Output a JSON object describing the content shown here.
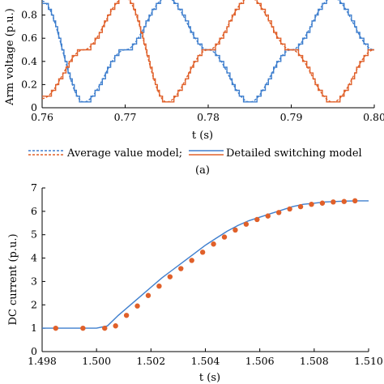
{
  "chart_data": [
    {
      "type": "line",
      "caption": "(a)",
      "xlabel": "t (s)",
      "ylabel": "Arm voltage (p.u.)",
      "xlim": [
        0.76,
        0.8
      ],
      "ylim": [
        0,
        1.0
      ],
      "xticks": [
        "0.76",
        "0.77",
        "0.78",
        "0.79",
        "0.80"
      ],
      "yticks": [
        "0",
        "0.2",
        "0.4",
        "0.6",
        "0.8"
      ],
      "grid": false,
      "legend_position": "bottom",
      "series": [
        {
          "name": "Average value model;",
          "style": "dashed",
          "color": "#3f7fce",
          "x": [
            0.76,
            0.765,
            0.77,
            0.775,
            0.78,
            0.785,
            0.79,
            0.795,
            0.8
          ],
          "y": [
            0.92,
            0.05,
            0.5,
            0.95,
            0.5,
            0.05,
            0.5,
            0.95,
            0.5
          ]
        },
        {
          "name": "Detailed switching model",
          "style": "solid",
          "color": "#3f7fce",
          "x": [
            0.76,
            0.765,
            0.77,
            0.775,
            0.78,
            0.785,
            0.79,
            0.795,
            0.8
          ],
          "y": [
            0.92,
            0.05,
            0.5,
            0.95,
            0.5,
            0.05,
            0.5,
            0.95,
            0.5
          ]
        },
        {
          "name": "",
          "style": "dashed",
          "color": "#e0602a",
          "x": [
            0.76,
            0.765,
            0.77,
            0.775,
            0.78,
            0.785,
            0.79,
            0.795,
            0.8
          ],
          "y": [
            0.08,
            0.5,
            0.95,
            0.05,
            0.5,
            0.95,
            0.5,
            0.05,
            0.5
          ]
        },
        {
          "name": "",
          "style": "solid",
          "color": "#e0602a",
          "x": [
            0.76,
            0.765,
            0.77,
            0.775,
            0.78,
            0.785,
            0.79,
            0.795,
            0.8
          ],
          "y": [
            0.08,
            0.5,
            0.95,
            0.05,
            0.5,
            0.95,
            0.5,
            0.05,
            0.5
          ]
        }
      ]
    },
    {
      "type": "line",
      "xlabel": "t (s)",
      "ylabel": "DC current (p.u.)",
      "xlim": [
        1.498,
        1.51
      ],
      "ylim": [
        0,
        7
      ],
      "xticks": [
        "1.498",
        "1.500",
        "1.502",
        "1.504",
        "1.506",
        "1.508",
        "1.510"
      ],
      "yticks": [
        "0",
        "1",
        "2",
        "3",
        "4",
        "5",
        "6",
        "7"
      ],
      "grid": false,
      "series": [
        {
          "name": "",
          "style": "solid",
          "color": "#3f7fce",
          "x": [
            1.498,
            1.4985,
            1.499,
            1.4995,
            1.5,
            1.5004,
            1.5008,
            1.5012,
            1.5016,
            1.502,
            1.5024,
            1.5028,
            1.5032,
            1.5036,
            1.504,
            1.5044,
            1.5048,
            1.5052,
            1.5056,
            1.506,
            1.5064,
            1.5068,
            1.5072,
            1.5076,
            1.508,
            1.5084,
            1.5088,
            1.5092,
            1.5096,
            1.51
          ],
          "y": [
            1.0,
            1.0,
            1.0,
            1.0,
            1.0,
            1.1,
            1.55,
            1.95,
            2.35,
            2.75,
            3.15,
            3.5,
            3.85,
            4.2,
            4.55,
            4.85,
            5.15,
            5.4,
            5.6,
            5.75,
            5.9,
            6.05,
            6.2,
            6.3,
            6.35,
            6.4,
            6.42,
            6.44,
            6.45,
            6.45
          ]
        },
        {
          "name": "",
          "style": "markers",
          "color": "#e0602a",
          "x": [
            1.4985,
            1.4995,
            1.5003,
            1.5007,
            1.5011,
            1.5015,
            1.5019,
            1.5023,
            1.5027,
            1.5031,
            1.5035,
            1.5039,
            1.5043,
            1.5047,
            1.5051,
            1.5055,
            1.5059,
            1.5063,
            1.5067,
            1.5071,
            1.5075,
            1.5079,
            1.5083,
            1.5087,
            1.5091,
            1.5095
          ],
          "y": [
            1.0,
            1.0,
            1.0,
            1.1,
            1.55,
            1.95,
            2.4,
            2.8,
            3.2,
            3.55,
            3.9,
            4.25,
            4.6,
            4.9,
            5.2,
            5.45,
            5.65,
            5.8,
            5.95,
            6.1,
            6.2,
            6.3,
            6.35,
            6.4,
            6.42,
            6.45
          ]
        }
      ]
    }
  ]
}
